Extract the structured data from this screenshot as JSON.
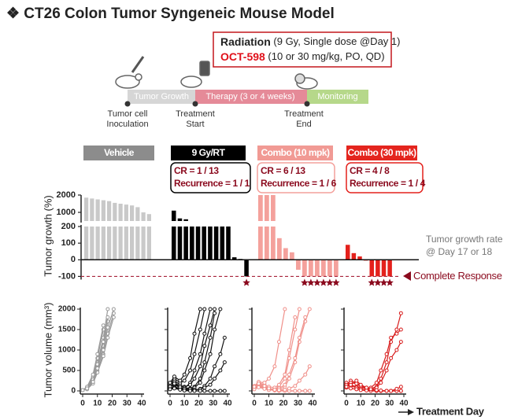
{
  "title": "❖  CT26 Colon Tumor Syngeneic Mouse Model",
  "treatment_box": {
    "line1_bold": "Radiation",
    "line1_rest": " (9 Gy, Single dose @Day 1)",
    "line2_bold": "OCT-598",
    "line2_rest": " (10 or 30 mg/kg, PO, QD)"
  },
  "timeline": {
    "phases": [
      "Tumor Growth",
      "Therapy (3 or 4 weeks)",
      "Monitoring"
    ],
    "milestones": [
      [
        "Tumor cell",
        "Inoculation"
      ],
      [
        "Treatment",
        "Start"
      ],
      [
        "Treatment",
        "End"
      ]
    ]
  },
  "chart_data": [
    {
      "type": "bar",
      "ylabel": "Tumor growth (%)",
      "ylim": [
        -150,
        2000
      ],
      "axis_break": [
        200,
        500
      ],
      "yticks": [
        -100,
        0,
        100,
        200,
        1000,
        2000
      ],
      "annotations": [
        "Tumor growth rate",
        "@ Day 17 or 18"
      ],
      "reference_line": {
        "value": -100,
        "label": "Complete Response"
      },
      "series": [
        {
          "name": "Vehicle",
          "color": "#c9c9c9",
          "header_color": "#8c8c8c",
          "values": [
            1850,
            1800,
            1750,
            1700,
            1650,
            1550,
            1500,
            1450,
            1400,
            1300,
            1000,
            900
          ]
        },
        {
          "name": "9 Gy/RT",
          "color": "#000000",
          "header_color": "#000000",
          "cr": "CR = 1 / 13",
          "recurrence": "Recurrence = 1 / 1",
          "values": [
            1100,
            650,
            600,
            200,
            200,
            200,
            200,
            200,
            200,
            200,
            15,
            5,
            -100
          ]
        },
        {
          "name": "Combo (10 mpk)",
          "color": "#f4a19c",
          "header_color": "#f19a94",
          "cr": "CR = 6 / 13",
          "recurrence": "Recurrence = 1 / 6",
          "values": [
            2000,
            2000,
            2000,
            130,
            70,
            45,
            -60,
            -100,
            -100,
            -100,
            -100,
            -100,
            -100
          ]
        },
        {
          "name": "Combo (30 mpk)",
          "color": "#e4211c",
          "header_color": "#e4251e",
          "cr": "CR = 4 / 8",
          "recurrence": "Recurrence = 1 / 4",
          "values": [
            90,
            40,
            20,
            -5,
            -100,
            -100,
            -100,
            -100
          ]
        }
      ]
    },
    {
      "type": "line",
      "ylabel": "Tumor volume (mm³)",
      "color": "#9a9a9a",
      "ytick_labels": true,
      "xlim": [
        0,
        40
      ],
      "xticks": [
        0,
        10,
        20,
        30,
        40
      ],
      "ylim": [
        0,
        2000
      ],
      "yticks": [
        0,
        500,
        1000,
        1500,
        2000
      ],
      "x": [
        0,
        3,
        7,
        10,
        14,
        17,
        21
      ],
      "series": [
        {
          "values": [
            20,
            60,
            250,
            600,
            1100,
            1700,
            null
          ]
        },
        {
          "values": [
            20,
            80,
            300,
            700,
            1300,
            2000,
            null
          ]
        },
        {
          "values": [
            20,
            50,
            200,
            500,
            900,
            1400,
            1900
          ]
        },
        {
          "values": [
            20,
            90,
            350,
            800,
            1500,
            null,
            null
          ]
        },
        {
          "values": [
            20,
            70,
            280,
            650,
            1200,
            1800,
            null
          ]
        },
        {
          "values": [
            20,
            40,
            180,
            450,
            850,
            1300,
            1800
          ]
        },
        {
          "values": [
            20,
            100,
            400,
            900,
            1600,
            null,
            null
          ]
        },
        {
          "values": [
            20,
            60,
            220,
            550,
            1000,
            1550,
            2000
          ]
        }
      ]
    },
    {
      "type": "line",
      "color": "#111111",
      "ytick_labels": false,
      "xlim": [
        0,
        40
      ],
      "xticks": [
        0,
        10,
        20,
        30,
        40
      ],
      "ylim": [
        0,
        2000
      ],
      "yticks": [
        0,
        500,
        1000,
        1500,
        2000
      ],
      "x": [
        0,
        3,
        7,
        10,
        14,
        17,
        21,
        24,
        28,
        31,
        35,
        38
      ],
      "series": [
        {
          "values": [
            100,
            150,
            80,
            60,
            200,
            500,
            900,
            1400,
            2000,
            null,
            null,
            null
          ]
        },
        {
          "values": [
            80,
            200,
            120,
            100,
            150,
            300,
            600,
            1100,
            1600,
            2000,
            null,
            null
          ]
        },
        {
          "values": [
            120,
            250,
            150,
            80,
            60,
            100,
            300,
            700,
            1300,
            1900,
            null,
            null
          ]
        },
        {
          "values": [
            60,
            100,
            60,
            40,
            30,
            80,
            200,
            500,
            900,
            1500,
            2000,
            null
          ]
        },
        {
          "values": [
            150,
            300,
            200,
            250,
            500,
            900,
            1500,
            2000,
            null,
            null,
            null,
            null
          ]
        },
        {
          "values": [
            50,
            80,
            40,
            20,
            10,
            20,
            50,
            120,
            300,
            600,
            900,
            1300
          ]
        },
        {
          "values": [
            100,
            180,
            90,
            50,
            40,
            30,
            40,
            80,
            150,
            300,
            500,
            700
          ]
        },
        {
          "values": [
            40,
            60,
            30,
            10,
            0,
            0,
            0,
            0,
            0,
            0,
            0,
            0
          ]
        },
        {
          "values": [
            200,
            350,
            250,
            400,
            800,
            1400,
            2000,
            null,
            null,
            null,
            null,
            null
          ]
        }
      ]
    },
    {
      "type": "line",
      "color": "#f0908a",
      "ytick_labels": false,
      "xlim": [
        0,
        40
      ],
      "xticks": [
        0,
        10,
        20,
        30,
        40
      ],
      "ylim": [
        0,
        2000
      ],
      "yticks": [
        0,
        500,
        1000,
        1500,
        2000
      ],
      "x": [
        0,
        3,
        7,
        10,
        14,
        17,
        21,
        24,
        28,
        31,
        35,
        38
      ],
      "series": [
        {
          "values": [
            80,
            150,
            100,
            60,
            40,
            100,
            300,
            800,
            1500,
            2000,
            null,
            null
          ]
        },
        {
          "values": [
            100,
            200,
            150,
            100,
            80,
            150,
            400,
            1000,
            1800,
            null,
            null,
            null
          ]
        },
        {
          "values": [
            60,
            120,
            80,
            40,
            20,
            30,
            100,
            300,
            700,
            1200,
            1700,
            2000
          ]
        },
        {
          "values": [
            120,
            220,
            200,
            300,
            600,
            1200,
            2000,
            null,
            null,
            null,
            null,
            null
          ]
        },
        {
          "values": [
            50,
            100,
            60,
            30,
            10,
            0,
            0,
            0,
            0,
            0,
            0,
            0
          ]
        },
        {
          "values": [
            80,
            150,
            90,
            50,
            20,
            10,
            0,
            0,
            0,
            0,
            0,
            0
          ]
        },
        {
          "values": [
            40,
            90,
            50,
            20,
            30,
            60,
            150,
            400,
            800,
            1300,
            1800,
            null
          ]
        },
        {
          "values": [
            100,
            180,
            120,
            60,
            30,
            20,
            30,
            60,
            120,
            250,
            400,
            600
          ]
        }
      ]
    },
    {
      "type": "line",
      "color": "#d81c1c",
      "ytick_labels": false,
      "xlabel": "Treatment Day",
      "xlim": [
        0,
        40
      ],
      "xticks": [
        0,
        10,
        20,
        30,
        40
      ],
      "ylim": [
        0,
        2000
      ],
      "yticks": [
        0,
        500,
        1000,
        1500,
        2000
      ],
      "x": [
        0,
        3,
        7,
        10,
        14,
        17,
        21,
        24,
        28,
        31,
        35,
        38
      ],
      "series": [
        {
          "values": [
            150,
            250,
            200,
            120,
            80,
            60,
            100,
            300,
            700,
            1200,
            1500,
            1900
          ]
        },
        {
          "values": [
            200,
            150,
            100,
            80,
            60,
            80,
            200,
            500,
            900,
            1300,
            1400,
            1500
          ]
        },
        {
          "values": [
            100,
            200,
            180,
            100,
            50,
            30,
            80,
            200,
            500,
            800,
            1000,
            1200
          ]
        },
        {
          "values": [
            150,
            120,
            80,
            50,
            20,
            10,
            0,
            0,
            0,
            0,
            0,
            0
          ]
        },
        {
          "values": [
            80,
            60,
            40,
            20,
            10,
            0,
            0,
            0,
            0,
            0,
            0,
            0
          ]
        },
        {
          "values": [
            100,
            150,
            250,
            150,
            80,
            40,
            20,
            10,
            0,
            0,
            50,
            100
          ]
        }
      ]
    }
  ]
}
